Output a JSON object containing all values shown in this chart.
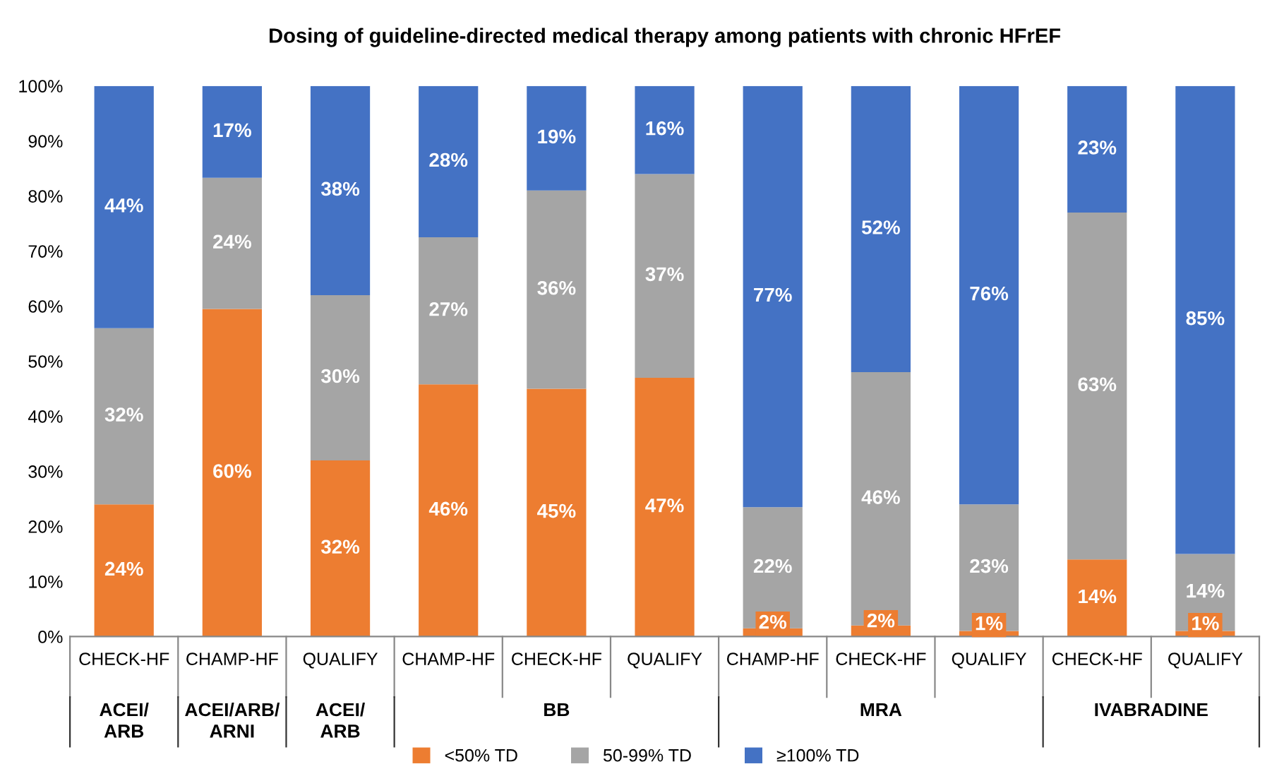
{
  "chart_data": {
    "type": "bar",
    "title": "Dosing of guideline-directed medical therapy among patients with chronic HFrEF",
    "categories": [
      "CHECK-HF",
      "CHAMP-HF",
      "QUALIFY",
      "CHAMP-HF",
      "CHECK-HF",
      "QUALIFY",
      "CHAMP-HF",
      "CHECK-HF",
      "QUALIFY",
      "CHECK-HF",
      "QUALIFY"
    ],
    "stacked": true,
    "series": [
      {
        "name": "<50% TD",
        "color": "#ed7d31",
        "values": [
          24,
          59.5,
          32,
          45.8,
          45,
          47,
          1.5,
          2,
          1,
          14,
          1
        ],
        "value_labels": [
          "24%",
          "60%",
          "32%",
          "46%",
          "45%",
          "47%",
          "2%",
          "2%",
          "1%",
          "14%",
          "1%"
        ]
      },
      {
        "name": "50-99% TD",
        "color": "#a5a5a5",
        "values": [
          32,
          23.8,
          30,
          26.7,
          36,
          37,
          22,
          46,
          23,
          63,
          14
        ],
        "value_labels": [
          "32%",
          "24%",
          "30%",
          "27%",
          "36%",
          "37%",
          "22%",
          "46%",
          "23%",
          "63%",
          "14%"
        ]
      },
      {
        "name": "≥100% TD",
        "color": "#4472c4",
        "values": [
          44,
          16.7,
          38,
          27.5,
          19,
          16,
          76.5,
          52,
          76,
          23,
          85
        ],
        "value_labels": [
          "44%",
          "17%",
          "38%",
          "28%",
          "19%",
          "16%",
          "77%",
          "52%",
          "76%",
          "23%",
          "85%"
        ]
      }
    ],
    "ylim": [
      0,
      100
    ],
    "yticks": [
      {
        "value": 0,
        "label": "0%"
      },
      {
        "value": 10,
        "label": "10%"
      },
      {
        "value": 20,
        "label": "20%"
      },
      {
        "value": 30,
        "label": "30%"
      },
      {
        "value": 40,
        "label": "40%"
      },
      {
        "value": 50,
        "label": "50%"
      },
      {
        "value": 60,
        "label": "60%"
      },
      {
        "value": 70,
        "label": "70%"
      },
      {
        "value": 80,
        "label": "80%"
      },
      {
        "value": 90,
        "label": "90%"
      },
      {
        "value": 100,
        "label": "100%"
      }
    ],
    "annotations": [
      "ACEI/\nARB",
      "ACEI/ARB/\nARNI",
      "ACEI/\nARB",
      "BB",
      "MRA",
      "IVABRADINE"
    ],
    "grid": false,
    "legend": "bottom"
  }
}
